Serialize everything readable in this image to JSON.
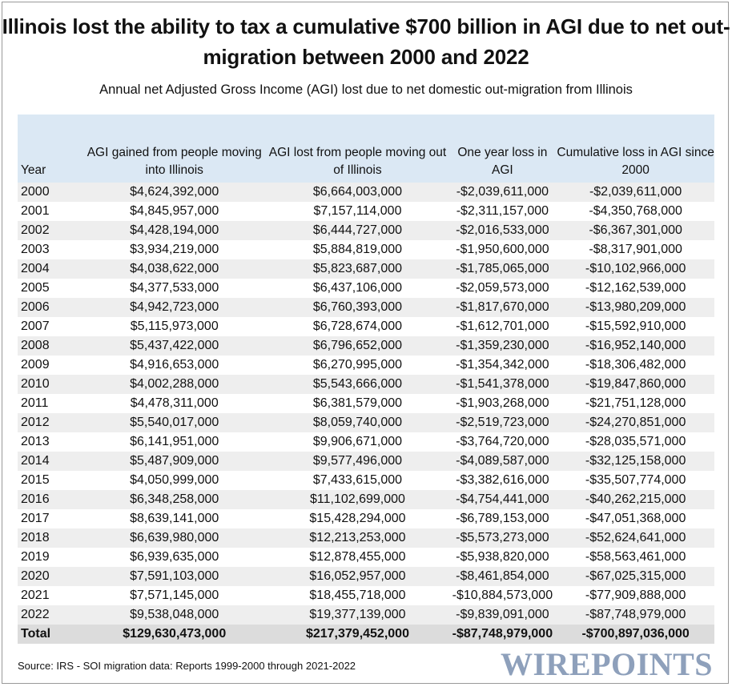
{
  "header": {
    "title": "Illinois lost the ability to tax a cumulative $700 billion in AGI due to net out-migration between 2000 and 2022",
    "subtitle": "Annual net Adjusted Gross Income (AGI) lost due to net domestic out-migration from Illinois"
  },
  "table": {
    "columns": [
      "Year",
      "AGI gained from people moving into Illinois",
      "AGI lost from people moving out of Illinois",
      "One year loss in AGI",
      "Cumulative loss in AGI since 2000"
    ],
    "rows": [
      [
        "2000",
        "$4,624,392,000",
        "$6,664,003,000",
        "-$2,039,611,000",
        "-$2,039,611,000"
      ],
      [
        "2001",
        "$4,845,957,000",
        "$7,157,114,000",
        "-$2,311,157,000",
        "-$4,350,768,000"
      ],
      [
        "2002",
        "$4,428,194,000",
        "$6,444,727,000",
        "-$2,016,533,000",
        "-$6,367,301,000"
      ],
      [
        "2003",
        "$3,934,219,000",
        "$5,884,819,000",
        "-$1,950,600,000",
        "-$8,317,901,000"
      ],
      [
        "2004",
        "$4,038,622,000",
        "$5,823,687,000",
        "-$1,785,065,000",
        "-$10,102,966,000"
      ],
      [
        "2005",
        "$4,377,533,000",
        "$6,437,106,000",
        "-$2,059,573,000",
        "-$12,162,539,000"
      ],
      [
        "2006",
        "$4,942,723,000",
        "$6,760,393,000",
        "-$1,817,670,000",
        "-$13,980,209,000"
      ],
      [
        "2007",
        "$5,115,973,000",
        "$6,728,674,000",
        "-$1,612,701,000",
        "-$15,592,910,000"
      ],
      [
        "2008",
        "$5,437,422,000",
        "$6,796,652,000",
        "-$1,359,230,000",
        "-$16,952,140,000"
      ],
      [
        "2009",
        "$4,916,653,000",
        "$6,270,995,000",
        "-$1,354,342,000",
        "-$18,306,482,000"
      ],
      [
        "2010",
        "$4,002,288,000",
        "$5,543,666,000",
        "-$1,541,378,000",
        "-$19,847,860,000"
      ],
      [
        "2011",
        "$4,478,311,000",
        "$6,381,579,000",
        "-$1,903,268,000",
        "-$21,751,128,000"
      ],
      [
        "2012",
        "$5,540,017,000",
        "$8,059,740,000",
        "-$2,519,723,000",
        "-$24,270,851,000"
      ],
      [
        "2013",
        "$6,141,951,000",
        "$9,906,671,000",
        "-$3,764,720,000",
        "-$28,035,571,000"
      ],
      [
        "2014",
        "$5,487,909,000",
        "$9,577,496,000",
        "-$4,089,587,000",
        "-$32,125,158,000"
      ],
      [
        "2015",
        "$4,050,999,000",
        "$7,433,615,000",
        "-$3,382,616,000",
        "-$35,507,774,000"
      ],
      [
        "2016",
        "$6,348,258,000",
        "$11,102,699,000",
        "-$4,754,441,000",
        "-$40,262,215,000"
      ],
      [
        "2017",
        "$8,639,141,000",
        "$15,428,294,000",
        "-$6,789,153,000",
        "-$47,051,368,000"
      ],
      [
        "2018",
        "$6,639,980,000",
        "$12,213,253,000",
        "-$5,573,273,000",
        "-$52,624,641,000"
      ],
      [
        "2019",
        "$6,939,635,000",
        "$12,878,455,000",
        "-$5,938,820,000",
        "-$58,563,461,000"
      ],
      [
        "2020",
        "$7,591,103,000",
        "$16,052,957,000",
        "-$8,461,854,000",
        "-$67,025,315,000"
      ],
      [
        "2021",
        "$7,571,145,000",
        "$18,455,718,000",
        "-$10,884,573,000",
        "-$77,909,888,000"
      ],
      [
        "2022",
        "$9,538,048,000",
        "$19,377,139,000",
        "-$9,839,091,000",
        "-$87,748,979,000"
      ]
    ],
    "total": [
      "Total",
      "$129,630,473,000",
      "$217,379,452,000",
      "-$87,748,979,000",
      "-$700,897,036,000"
    ]
  },
  "footer": {
    "source": "Source: IRS - SOI migration data: Reports 1999-2000 through 2021-2022",
    "logo": "WIREPOINTS"
  }
}
